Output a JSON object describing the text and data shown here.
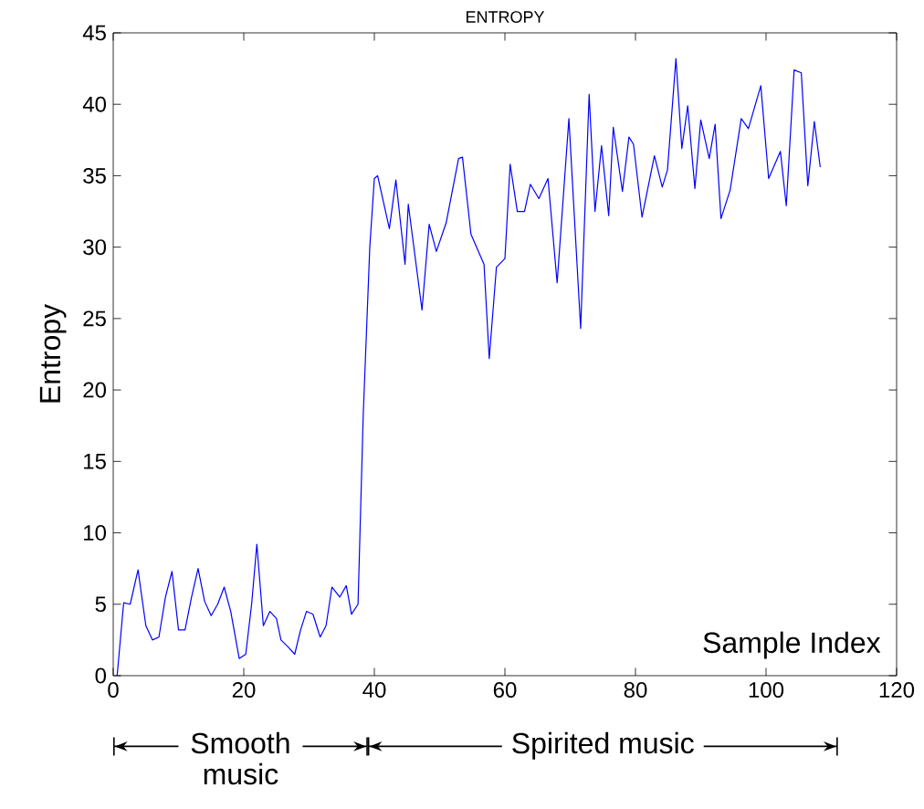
{
  "chart_data": {
    "type": "line",
    "title": "ENTROPY",
    "xlabel": "Sample Index",
    "ylabel": "Entropy",
    "xlim": [
      0,
      120
    ],
    "xticks": [
      0,
      20,
      40,
      60,
      80,
      100,
      120
    ],
    "ylim": [
      0,
      45
    ],
    "yticks": [
      0,
      5,
      10,
      15,
      20,
      25,
      30,
      35,
      40,
      45
    ],
    "grid": false,
    "legend": false,
    "marker": "none",
    "line_style": "solid",
    "annotations": [
      "Smooth music",
      "Spirited music"
    ],
    "series": [
      {
        "color": "#0000ff",
        "x": [
          0.6,
          1.6,
          2.6,
          3.8,
          5,
          6,
          7,
          8,
          9,
          10,
          11,
          12,
          13,
          14,
          15,
          16,
          17,
          18,
          19.3,
          20.3,
          21.2,
          22,
          23,
          24,
          25,
          25.7,
          26.8,
          27.8,
          28.7,
          29.6,
          30.6,
          31.7,
          32.6,
          33.5,
          34.7,
          35.7,
          36.5,
          37.5,
          38.3,
          39.3,
          40,
          40.5,
          42.3,
          43.3,
          44.7,
          45.2,
          47.3,
          48.4,
          49.5,
          51,
          52.9,
          53.5,
          54.8,
          56.8,
          57.6,
          58.7,
          60,
          60.8,
          61.9,
          63,
          63.9,
          65.2,
          66.6,
          68,
          69.8,
          71.6,
          72.9,
          73.8,
          74.8,
          75.9,
          76.6,
          78,
          79,
          79.7,
          81,
          82.9,
          84.1,
          84.9,
          86.2,
          87.1,
          88,
          89.1,
          90,
          91.3,
          92.2,
          93.1,
          94.5,
          96.2,
          97.3,
          99.2,
          100.4,
          102.2,
          103.1,
          104.3,
          105.4,
          106.4,
          107.4,
          108.3
        ],
        "values": [
          0,
          5.1,
          5,
          7.4,
          3.5,
          2.5,
          2.7,
          5.5,
          7.3,
          3.2,
          3.2,
          5.5,
          7.5,
          5.2,
          4.2,
          5,
          6.2,
          4.5,
          1.2,
          1.5,
          5,
          9.2,
          3.5,
          4.5,
          4,
          2.5,
          2,
          1.5,
          3.2,
          4.5,
          4.3,
          2.7,
          3.5,
          6.2,
          5.5,
          6.3,
          4.3,
          5,
          18.3,
          30,
          34.8,
          35,
          31.3,
          34.7,
          28.8,
          33,
          25.6,
          31.6,
          29.7,
          31.7,
          36.2,
          36.3,
          30.9,
          28.8,
          22.2,
          28.6,
          29.2,
          35.8,
          32.5,
          32.5,
          34.4,
          33.4,
          34.8,
          27.5,
          39,
          24.3,
          40.7,
          32.5,
          37.1,
          32.2,
          38.4,
          33.9,
          37.7,
          37.2,
          32.1,
          36.4,
          34.2,
          35.4,
          43.2,
          36.9,
          39.9,
          34.1,
          38.9,
          36.2,
          38.6,
          32,
          34,
          39,
          38.3,
          41.3,
          34.8,
          36.7,
          32.9,
          42.4,
          42.2,
          34.3,
          38.8,
          35.6
        ]
      }
    ]
  }
}
